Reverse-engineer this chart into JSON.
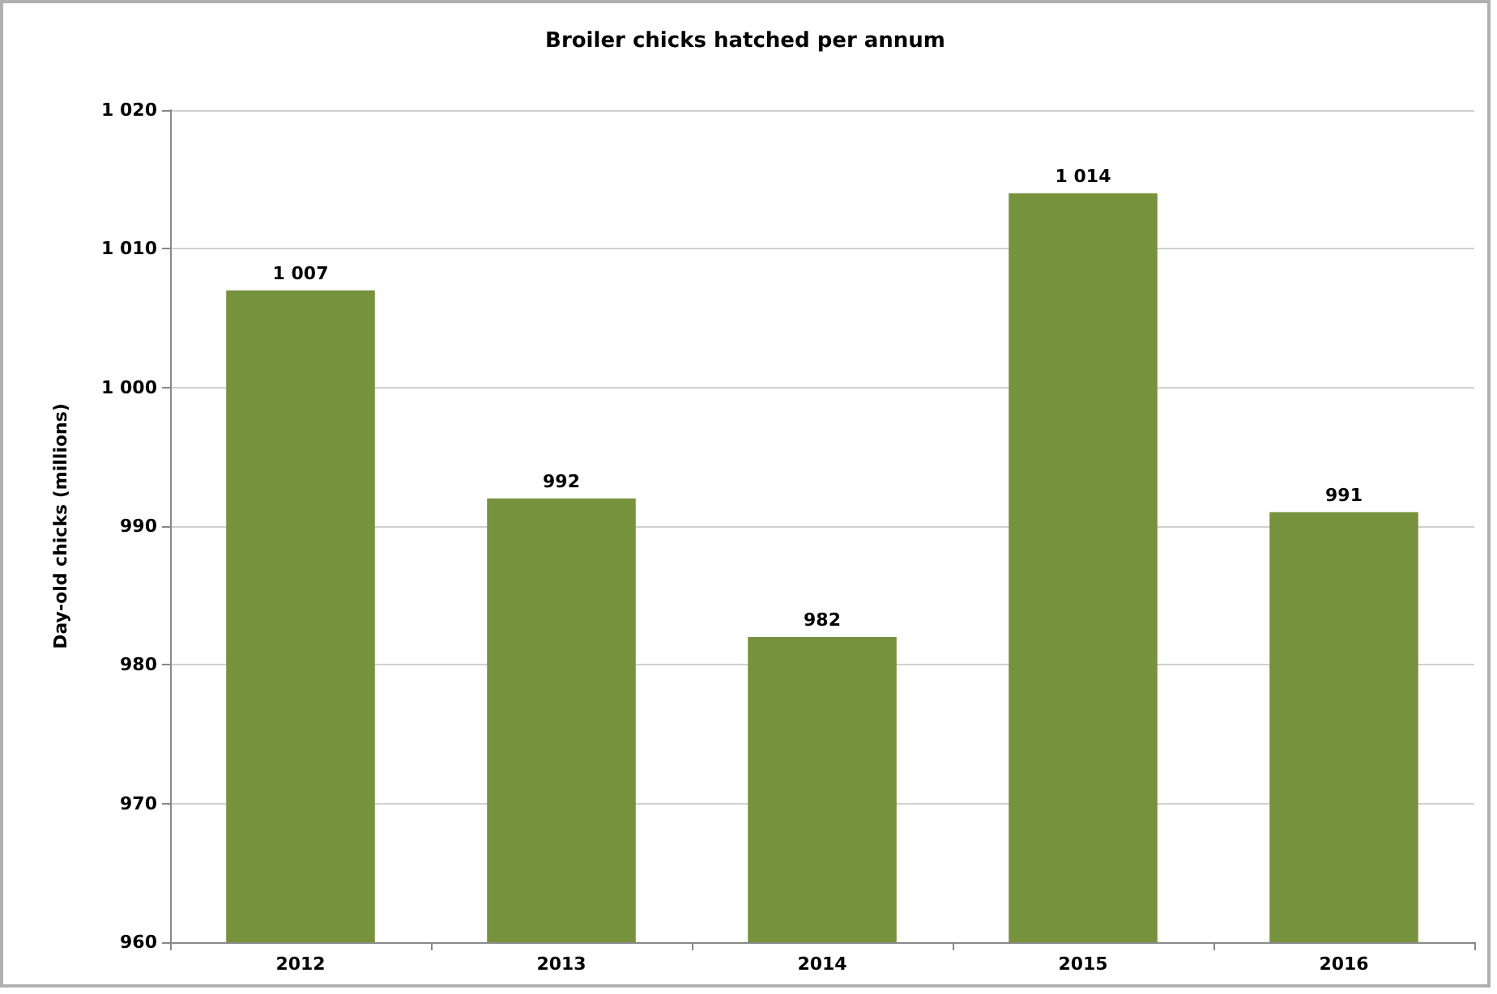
{
  "chart_data": {
    "type": "bar",
    "title": "Broiler chicks hatched per annum",
    "ylabel": "Day-old chicks (millions)",
    "categories": [
      "2012",
      "2013",
      "2014",
      "2015",
      "2016"
    ],
    "values": [
      1007,
      992,
      982,
      1014,
      991
    ],
    "value_labels": [
      "1 007",
      "992",
      "982",
      "1 014",
      "991"
    ],
    "color": "#76923c",
    "ylim": [
      960,
      1020
    ],
    "yticks": [
      960,
      970,
      980,
      990,
      {
        "value": 1000,
        "label": "1 000"
      },
      {
        "value": 1010,
        "label": "1 010"
      },
      {
        "value": 1020,
        "label": "1 020"
      }
    ],
    "grid": "y"
  }
}
